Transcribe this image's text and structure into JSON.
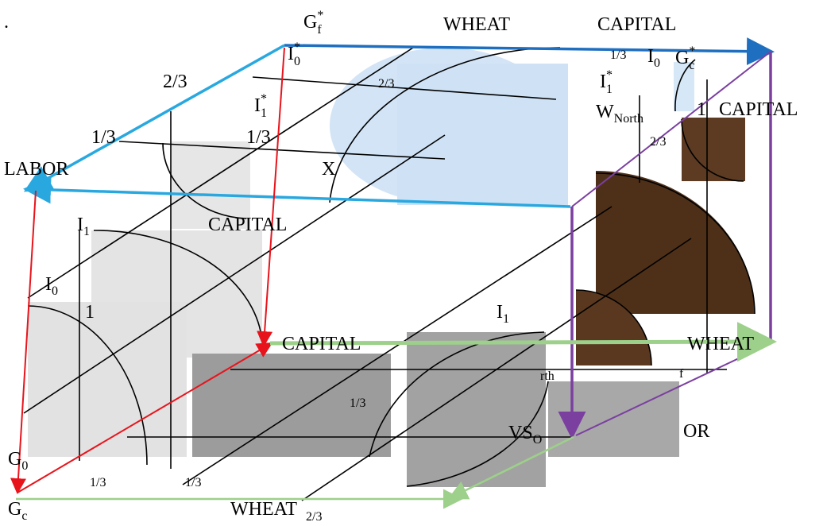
{
  "labels": [
    {
      "text": "."
    },
    {
      "text": "G",
      "sup": "*",
      "sub": "f"
    },
    {
      "text": "WHEAT"
    },
    {
      "text": "CAPITAL"
    },
    {
      "text": "I",
      "sup": "*",
      "sub": "0"
    },
    {
      "text": "1/3"
    },
    {
      "text": "I",
      "sub": "0"
    },
    {
      "text": "G",
      "sup": "*",
      "sub": "c"
    },
    {
      "text": "2/3"
    },
    {
      "text": "2/3"
    },
    {
      "text": "I",
      "sup": "*",
      "sub": "1"
    },
    {
      "text": "I",
      "sup": "*",
      "sub": "1"
    },
    {
      "text": "W",
      "sub": "North"
    },
    {
      "text": "1"
    },
    {
      "text": "CAPITAL"
    },
    {
      "text": "1/3"
    },
    {
      "text": "1/3"
    },
    {
      "text": "2/3"
    },
    {
      "text": "LABOR"
    },
    {
      "text": "X"
    },
    {
      "text": "I",
      "sub": "1"
    },
    {
      "text": "CAPITAL"
    },
    {
      "text": "I",
      "sub": "0"
    },
    {
      "text": "1"
    },
    {
      "text": "I",
      "sub": "1"
    },
    {
      "text": "CAPITAL"
    },
    {
      "text": "WHEAT"
    },
    {
      "text": "rth"
    },
    {
      "text": "f"
    },
    {
      "text": "1/3"
    },
    {
      "text": "VS",
      "sub": "O"
    },
    {
      "text": "OR"
    },
    {
      "text": "G",
      "sub": "0"
    },
    {
      "text": "1/3"
    },
    {
      "text": "1/3"
    },
    {
      "text": "G",
      "sub": "c"
    },
    {
      "text": "WHEAT"
    },
    {
      "text": "2/3"
    }
  ]
}
